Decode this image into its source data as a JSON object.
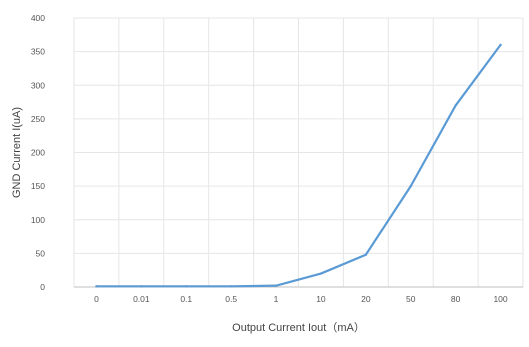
{
  "chart_data": {
    "type": "line",
    "title": "",
    "xlabel": "Output Current Iout（mA）",
    "ylabel": "GND Current I(uA)",
    "categories": [
      "0",
      "0.01",
      "0.1",
      "0.5",
      "1",
      "10",
      "20",
      "50",
      "80",
      "100"
    ],
    "series": [
      {
        "values": [
          1,
          1,
          1,
          1,
          2,
          20,
          48,
          150,
          270,
          360
        ]
      }
    ],
    "ylim": [
      0,
      400
    ],
    "yticks": [
      0,
      50,
      100,
      150,
      200,
      250,
      300,
      350,
      400
    ],
    "grid": true,
    "legend": "none",
    "colors": {
      "line": "#5b9bd5",
      "grid": "#e6e6e6",
      "axis": "#bfbfbf"
    }
  }
}
